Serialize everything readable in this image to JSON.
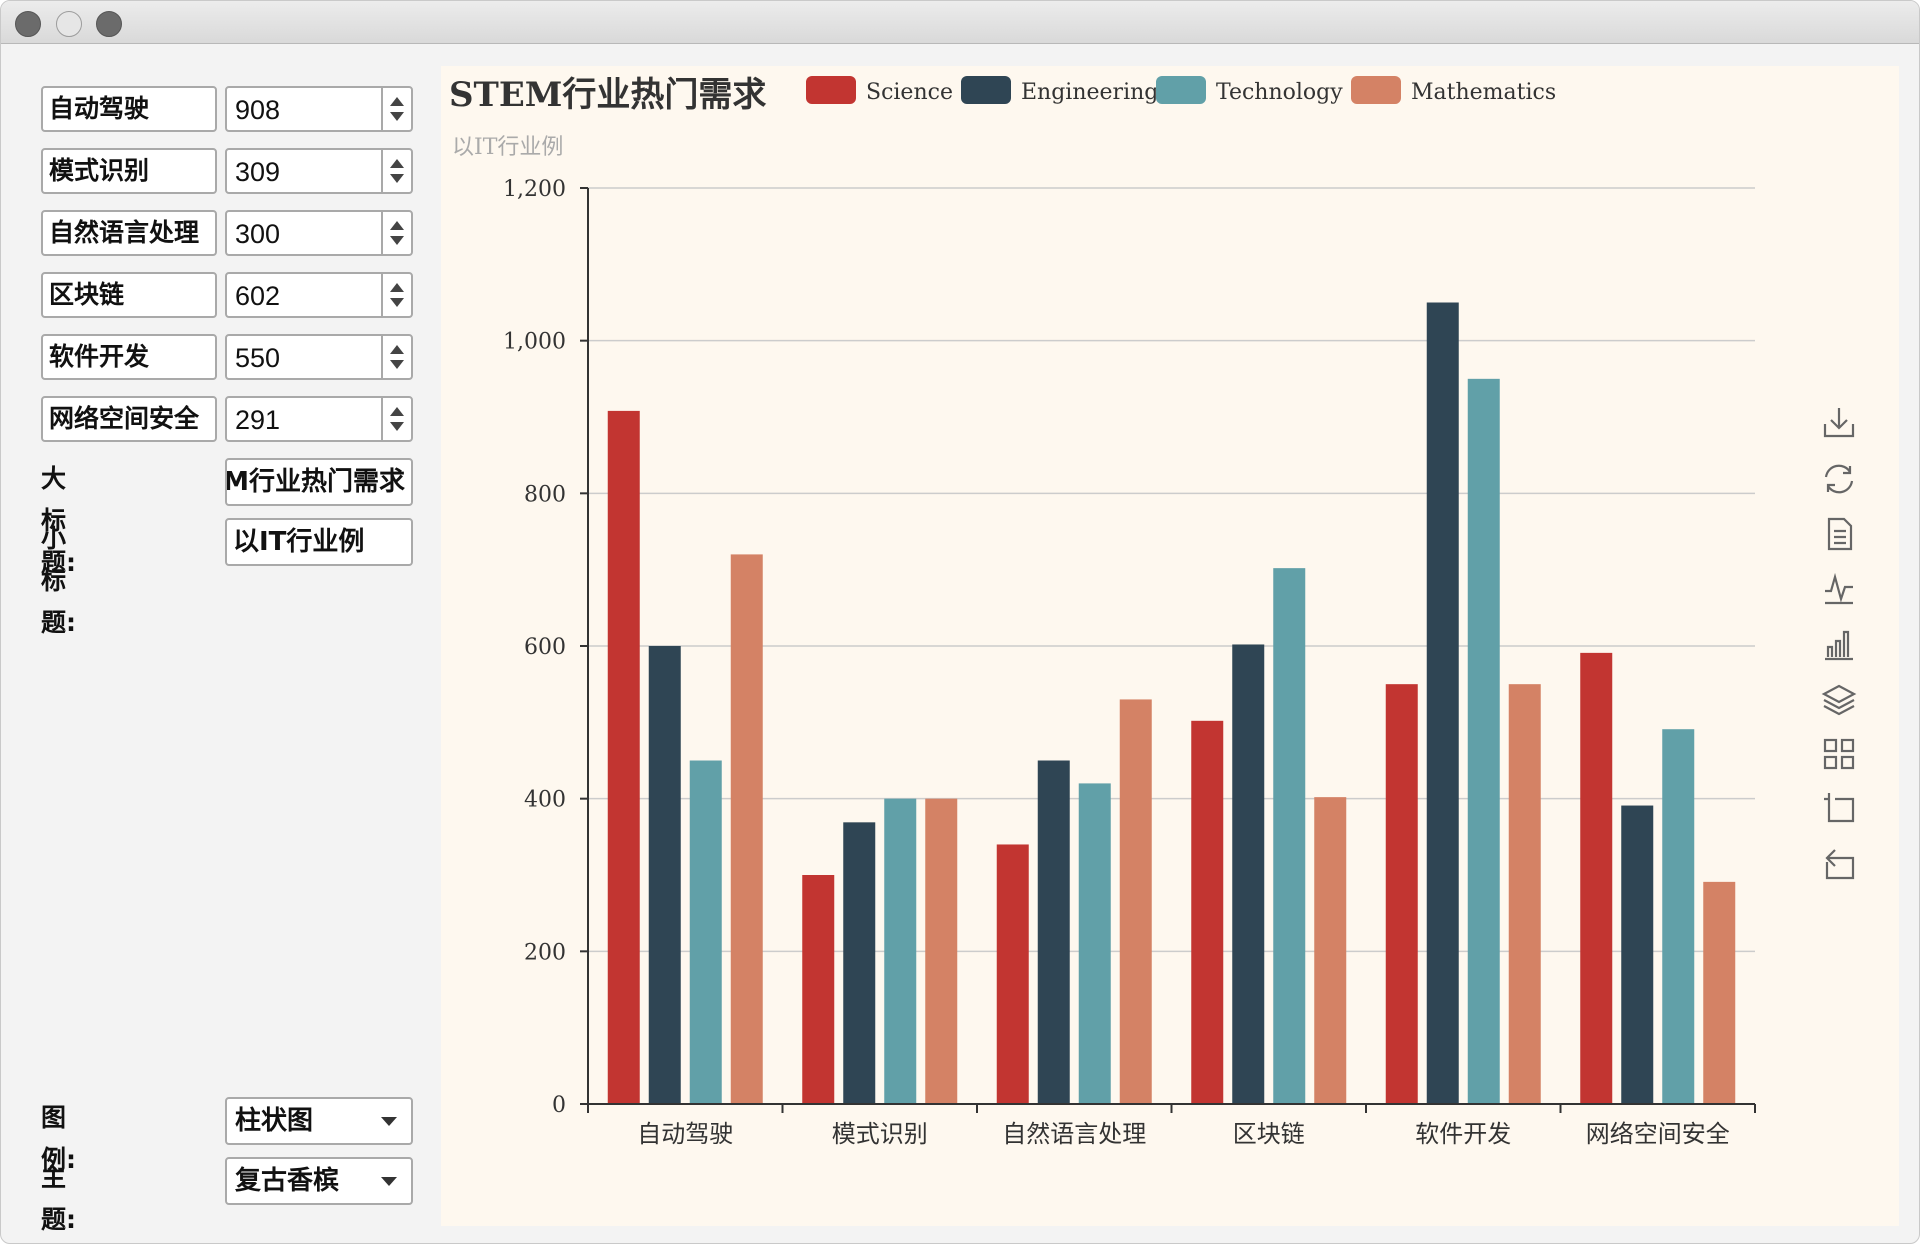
{
  "controls": {
    "items": [
      {
        "name": "自动驾驶",
        "value": "908"
      },
      {
        "name": "模式识别",
        "value": "309"
      },
      {
        "name": "自然语言处理",
        "value": "300"
      },
      {
        "name": "区块链",
        "value": "602"
      },
      {
        "name": "软件开发",
        "value": "550"
      },
      {
        "name": "网络空间安全",
        "value": "291"
      }
    ],
    "title_label": "大标题:",
    "title_value": "STEM行业热门需求",
    "subtitle_label": "小标题:",
    "subtitle_value": "以IT行业例",
    "legend_label": "图例:",
    "legend_value": "柱状图",
    "theme_label": "主题:",
    "theme_value": "复古香槟"
  },
  "toolbox_icons": [
    "download-icon",
    "refresh-icon",
    "data-view-icon",
    "line-chart-icon",
    "bar-chart-icon",
    "stack-icon",
    "tiled-icon",
    "zoom-icon",
    "zoom-reset-icon"
  ],
  "colors": {
    "Science": "#c23531",
    "Engineering": "#2f4554",
    "Technology": "#61a0a8",
    "Mathematics": "#d48265",
    "background": "#fef8ef"
  },
  "chart_data": {
    "type": "bar",
    "title": "STEM行业热门需求",
    "subtitle": "以IT行业例",
    "categories": [
      "自动驾驶",
      "模式识别",
      "自然语言处理",
      "区块链",
      "软件开发",
      "网络空间安全"
    ],
    "series": [
      {
        "name": "Science",
        "values": [
          908,
          300,
          340,
          502,
          550,
          591
        ]
      },
      {
        "name": "Engineering",
        "values": [
          600,
          369,
          450,
          602,
          1050,
          391
        ]
      },
      {
        "name": "Technology",
        "values": [
          450,
          400,
          420,
          702,
          950,
          491
        ]
      },
      {
        "name": "Mathematics",
        "values": [
          720,
          400,
          530,
          402,
          550,
          291
        ]
      }
    ],
    "yticks": [
      "0",
      "200",
      "400",
      "600",
      "800",
      "1,000",
      "1,200"
    ],
    "ylim": [
      0,
      1200
    ],
    "grid": true,
    "legend_position": "top"
  }
}
